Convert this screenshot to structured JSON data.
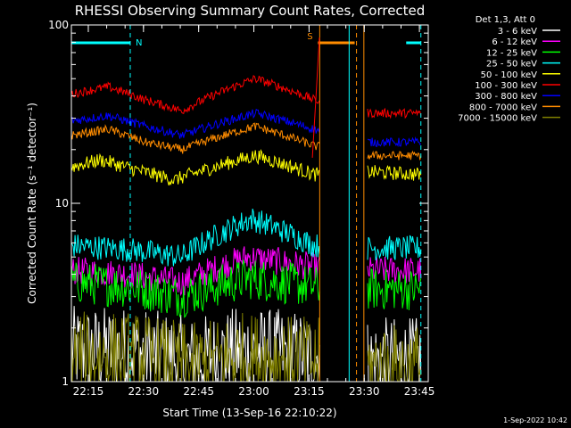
{
  "chart_data": {
    "type": "line",
    "title": "RHESSI Observing Summary Count Rates, Corrected",
    "xlabel": "Start Time (13-Sep-16 22:10:22)",
    "ylabel": "Corrected Count Rate (s⁻¹ detector⁻¹)",
    "yscale": "log",
    "ylim": [
      1,
      100
    ],
    "xlim_minutes": [
      0,
      97
    ],
    "x_tick_labels": [
      "22:15",
      "22:30",
      "22:45",
      "23:00",
      "23:15",
      "23:30",
      "23:45"
    ],
    "x_tick_minutes": [
      4.6,
      19.6,
      34.6,
      49.6,
      64.6,
      79.6,
      94.6
    ],
    "y_tick_labels": [
      "1",
      "10",
      "100"
    ],
    "y_tick_values": [
      1,
      10,
      100
    ],
    "legend_title": "Det 1,3, Att 0",
    "legend_position": "top-right",
    "timestamp": "1-Sep-2022 10:42",
    "flags": [
      {
        "label": "N",
        "color": "#00ffff",
        "segments": [
          [
            0,
            16
          ],
          [
            91,
            95
          ]
        ]
      },
      {
        "label": "S",
        "color": "#ff8c00",
        "segments": [
          [
            67,
            77
          ]
        ]
      }
    ],
    "markers": [
      {
        "minute": 16,
        "color": "#00ffff",
        "style": "dashed"
      },
      {
        "minute": 67.5,
        "color": "#ff8c00",
        "style": "solid"
      },
      {
        "minute": 75.5,
        "color": "#00ffff",
        "style": "solid"
      },
      {
        "minute": 77.5,
        "color": "#ff8c00",
        "style": "dashed"
      },
      {
        "minute": 79.5,
        "color": "#ff8c00",
        "style": "solid"
      },
      {
        "minute": 95,
        "color": "#00ffff",
        "style": "dashed"
      }
    ],
    "data_segments": [
      [
        0,
        67.5
      ],
      [
        80.5,
        95
      ]
    ],
    "series": [
      {
        "name": "3 - 6 keV",
        "color": "#ffffff",
        "base": [
          [
            0,
            1.5
          ],
          [
            16,
            1.5
          ],
          [
            33,
            1.3
          ],
          [
            46,
            1.5
          ],
          [
            66,
            1.4
          ],
          [
            81,
            1.3
          ],
          [
            95,
            1.3
          ]
        ],
        "spread": 0.25
      },
      {
        "name": "6 - 12 keV",
        "color": "#ff00ff",
        "base": [
          [
            0,
            4.2
          ],
          [
            16,
            4.0
          ],
          [
            30,
            3.6
          ],
          [
            48,
            5.0
          ],
          [
            66,
            4.4
          ],
          [
            81,
            4.2
          ],
          [
            95,
            4.2
          ]
        ],
        "spread": 0.08
      },
      {
        "name": "12 - 25 keV",
        "color": "#00ff00",
        "base": [
          [
            0,
            3.6
          ],
          [
            16,
            3.4
          ],
          [
            30,
            3.0
          ],
          [
            48,
            3.8
          ],
          [
            66,
            3.4
          ],
          [
            81,
            3.3
          ],
          [
            95,
            3.3
          ]
        ],
        "spread": 0.12
      },
      {
        "name": "25 - 50 keV",
        "color": "#00ffff",
        "base": [
          [
            0,
            5.8
          ],
          [
            16,
            5.5
          ],
          [
            30,
            5.0
          ],
          [
            49,
            8.2
          ],
          [
            66,
            5.8
          ],
          [
            81,
            5.6
          ],
          [
            95,
            5.6
          ]
        ],
        "spread": 0.07
      },
      {
        "name": "50 - 100 keV",
        "color": "#ffff00",
        "base": [
          [
            0,
            16
          ],
          [
            8,
            17.5
          ],
          [
            17,
            15.5
          ],
          [
            28,
            13.5
          ],
          [
            50,
            18.5
          ],
          [
            66,
            14.5
          ],
          [
            81,
            15
          ],
          [
            95,
            14.5
          ]
        ],
        "spread": 0.04
      },
      {
        "name": "100 - 300 keV",
        "color": "#ff0000",
        "base": [
          [
            0,
            41
          ],
          [
            10,
            45
          ],
          [
            20,
            38
          ],
          [
            30,
            33
          ],
          [
            50,
            50
          ],
          [
            66,
            38
          ],
          [
            81,
            32
          ],
          [
            95,
            32
          ]
        ],
        "spread": 0.025
      },
      {
        "name": "300 - 800 keV",
        "color": "#0000ff",
        "base": [
          [
            0,
            29
          ],
          [
            10,
            31
          ],
          [
            20,
            27
          ],
          [
            30,
            24
          ],
          [
            50,
            32
          ],
          [
            66,
            26
          ],
          [
            81,
            22
          ],
          [
            95,
            22
          ]
        ],
        "spread": 0.025
      },
      {
        "name": "800 - 7000 keV",
        "color": "#ff8c00",
        "base": [
          [
            0,
            24
          ],
          [
            10,
            26
          ],
          [
            20,
            22
          ],
          [
            30,
            20
          ],
          [
            50,
            27
          ],
          [
            66,
            21
          ],
          [
            81,
            18.5
          ],
          [
            95,
            18.5
          ]
        ],
        "spread": 0.025
      },
      {
        "name": "7000 - 15000 keV",
        "color": "#808000",
        "base": [
          [
            0,
            1.4
          ],
          [
            16,
            1.4
          ],
          [
            33,
            1.2
          ],
          [
            46,
            1.4
          ],
          [
            66,
            1.3
          ],
          [
            81,
            1.2
          ],
          [
            95,
            1.2
          ]
        ],
        "spread": 0.25
      }
    ]
  }
}
